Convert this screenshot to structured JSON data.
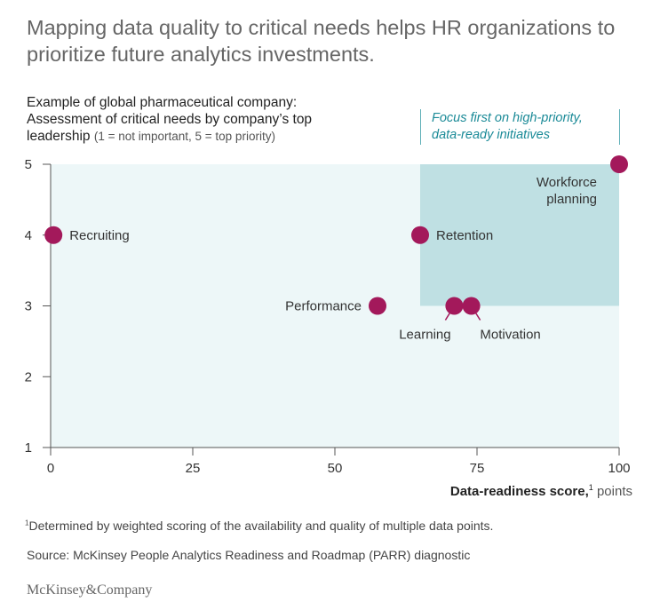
{
  "headline": "Mapping data quality to critical needs helps HR organizations to prioritize future analytics investments.",
  "subtitle": {
    "line1": "Example of global pharmaceutical company:",
    "line2": "Assessment of critical needs by company’s top",
    "line3": "leadership",
    "note": "(1 = not important, 5 = top priority)"
  },
  "focus_note": {
    "line1": "Focus first on high-priority,",
    "line2": "data-ready initiatives"
  },
  "x_axis": {
    "title": "Data-readiness score,",
    "superscript": "1",
    "units": "points"
  },
  "footnote": {
    "marker": "1",
    "text": "Determined by weighted scoring of the availability and quality of multiple data points."
  },
  "source": "Source: McKinsey People Analytics Readiness and Roadmap (PARR) diagnostic",
  "logo": "McKinsey&Company",
  "colors": {
    "plot_bg": "#edf7f8",
    "focus_bg": "#bfe0e3",
    "point": "#a3195b",
    "focus_text": "#1a8a97"
  },
  "chart_data": {
    "type": "scatter",
    "title": "Example of global pharmaceutical company: Assessment of critical needs by company’s top leadership",
    "xlabel": "Data-readiness score, points",
    "ylabel": "Critical need (1 = not important, 5 = top priority)",
    "xlim": [
      0,
      100
    ],
    "ylim": [
      1,
      5
    ],
    "x_ticks": [
      0,
      25,
      50,
      75,
      100
    ],
    "y_ticks": [
      1,
      2,
      3,
      4,
      5
    ],
    "grid": false,
    "highlight_region": {
      "label": "Focus first on high-priority, data-ready initiatives",
      "x": [
        65,
        100
      ],
      "y": [
        3,
        5
      ]
    },
    "points": [
      {
        "name": "Recruiting",
        "x": 0.5,
        "y": 4,
        "label_position": "right"
      },
      {
        "name": "Retention",
        "x": 65,
        "y": 4,
        "label_position": "right"
      },
      {
        "name": "Workforce planning",
        "label_lines": [
          "Workforce",
          "planning"
        ],
        "x": 100,
        "y": 5,
        "label_position": "below-left"
      },
      {
        "name": "Performance",
        "x": 57.5,
        "y": 3,
        "label_position": "left"
      },
      {
        "name": "Learning",
        "x": 71,
        "y": 3,
        "label_position": "below-left-leader"
      },
      {
        "name": "Motivation",
        "x": 74,
        "y": 3,
        "label_position": "below-right-leader"
      }
    ]
  }
}
